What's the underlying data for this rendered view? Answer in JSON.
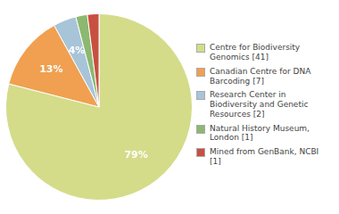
{
  "chart_data": {
    "type": "pie",
    "categories": [
      "Centre for Biodiversity\nGenomics [41]",
      "Canadian Centre for DNA\nBarcoding [7]",
      "Research Center in\nBiodiversity and Genetic\nResources [2]",
      "Natural History Museum, London [1]",
      "Mined from GenBank, NCBI [1]"
    ],
    "values": [
      79,
      13,
      4,
      2,
      2
    ],
    "value_labels": [
      "79%",
      "13%",
      "4%",
      null,
      null
    ],
    "colors": [
      "#d4dc8a",
      "#f0a050",
      "#a8c4d8",
      "#8cb870",
      "#c85040"
    ],
    "data_labels": true,
    "legend": "right"
  }
}
